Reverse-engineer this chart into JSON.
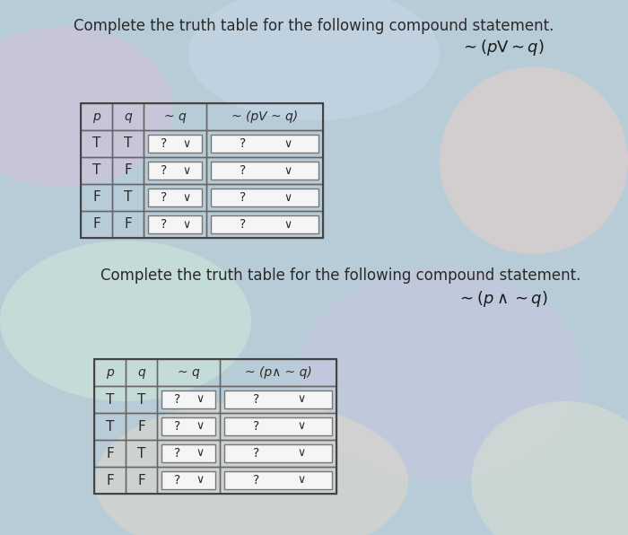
{
  "title1": "Complete the truth table for the following compound statement.",
  "title1_formula": "~ (pV ~ q)",
  "title2": "Complete the truth table for the following compound statement.",
  "title2_formula": "~ (p∧ ~ q)",
  "rows": [
    [
      "T",
      "T"
    ],
    [
      "T",
      "F"
    ],
    [
      "F",
      "T"
    ],
    [
      "F",
      "F"
    ]
  ],
  "table_bg": "#e8eef5",
  "header_bg": "#dde5f0",
  "border_color": "#444444",
  "cell_border": "#666666",
  "dropdown_bg": "#f5f5f5",
  "dropdown_border": "#777777",
  "text_color": "#2a2a2a",
  "formula_color": "#1a1a1a",
  "bg_colors": {
    "base": "#c8d8e0",
    "pink_patch": "#e8c8d8",
    "blue_patch": "#b8c8e8",
    "green_patch": "#c8e0c8"
  }
}
